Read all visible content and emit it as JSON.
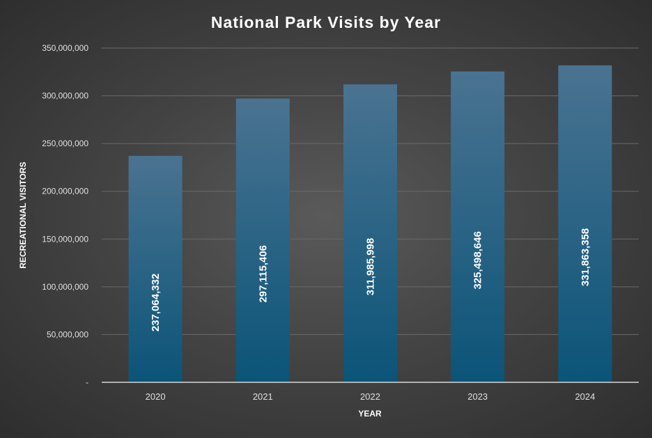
{
  "chart_data": {
    "type": "bar",
    "title": "National Park Visits by Year",
    "xlabel": "YEAR",
    "ylabel": "RECREATIONAL VISITORS",
    "categories": [
      "2020",
      "2021",
      "2022",
      "2023",
      "2024"
    ],
    "values": [
      237064332,
      297115406,
      311985998,
      325498646,
      331863358
    ],
    "data_labels": [
      "237,064,332",
      "297,115,406",
      "311,985,998",
      "325,498,646",
      "331,863,358"
    ],
    "y_ticks": [
      {
        "value": 0,
        "label": "-"
      },
      {
        "value": 50000000,
        "label": "50,000,000"
      },
      {
        "value": 100000000,
        "label": "100,000,000"
      },
      {
        "value": 150000000,
        "label": "150,000,000"
      },
      {
        "value": 200000000,
        "label": "200,000,000"
      },
      {
        "value": 250000000,
        "label": "250,000,000"
      },
      {
        "value": 300000000,
        "label": "300,000,000"
      },
      {
        "value": 350000000,
        "label": "350,000,000"
      }
    ],
    "ylim": [
      0,
      350000000
    ],
    "grid": true,
    "legend": "none",
    "colors": {
      "bar_top": "#4a7391",
      "bar_bottom": "#0b5478",
      "text": "#ffffff",
      "tick_text": "#e0e0e0",
      "grid": "#6a6a6a",
      "axis": "#d8d8d8"
    }
  }
}
